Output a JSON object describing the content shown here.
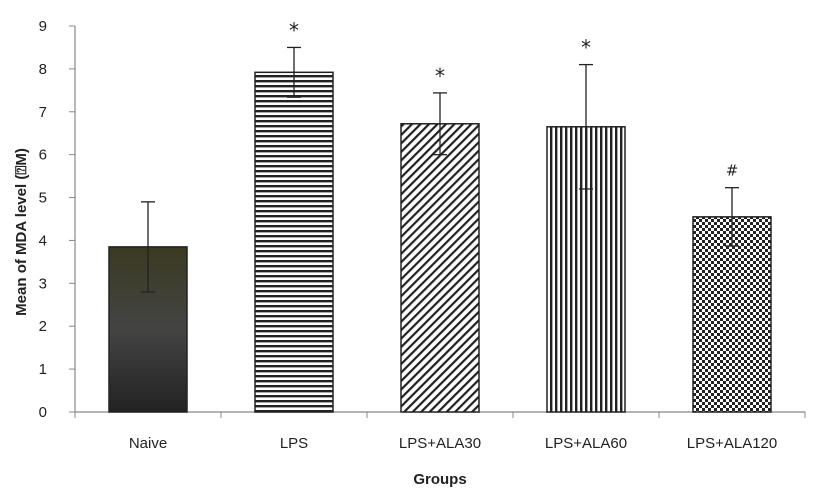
{
  "chart_data": {
    "type": "bar",
    "categories": [
      "Naive",
      "LPS",
      "LPS+ALA30",
      "LPS+ALA60",
      "LPS+ALA120"
    ],
    "values": [
      3.85,
      7.92,
      6.72,
      6.65,
      4.55
    ],
    "error_bars": [
      1.05,
      0.58,
      0.72,
      1.45,
      0.68
    ],
    "annotations": [
      "",
      "*",
      "*",
      "*",
      "#"
    ],
    "xlabel": "Groups",
    "ylabel": "Mean of MDA level (⍰M)",
    "ylim": [
      0,
      9
    ],
    "yticks": [
      0,
      1,
      2,
      3,
      4,
      5,
      6,
      7,
      8,
      9
    ],
    "grid": false,
    "bar_fills": [
      "solid-dark",
      "horizontal-lines",
      "diagonal-lines",
      "vertical-lines",
      "checkerboard"
    ],
    "colors": {
      "bar_fill": "#222222",
      "axis": "#888888",
      "text": "#222222"
    }
  }
}
